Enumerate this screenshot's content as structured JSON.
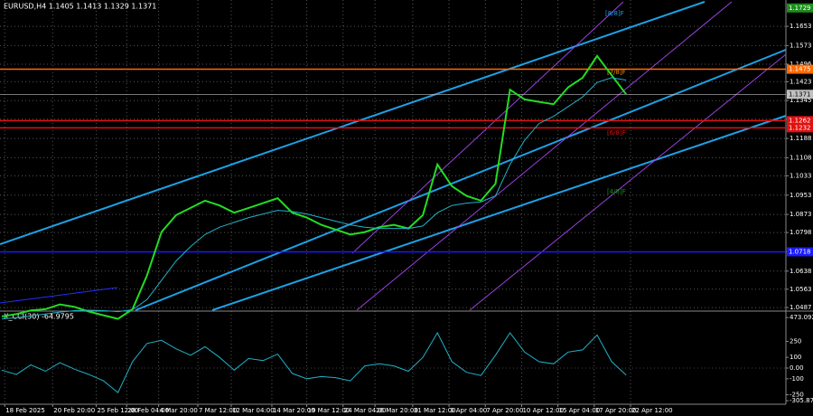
{
  "chart_data": [
    {
      "type": "line",
      "title": "EURUSD,H4  1.1405 1.1413 1.1329 1.1371",
      "ylim": [
        1.0476,
        1.1762
      ],
      "xlim": [
        0,
        54
      ],
      "yticks": [
        1.1653,
        1.1573,
        1.1496,
        1.1423,
        1.1345,
        1.1268,
        1.1188,
        1.1108,
        1.1033,
        1.0953,
        1.0873,
        1.0798,
        1.0718,
        1.0638,
        1.0563,
        1.0487
      ],
      "grid": true,
      "series": [
        {
          "name": "EURUSD",
          "color": "#22dd22",
          "values": [
            1.045,
            1.046,
            1.0475,
            1.048,
            1.05,
            1.049,
            1.047,
            1.0455,
            1.044,
            1.048,
            1.062,
            1.08,
            1.087,
            1.09,
            1.093,
            1.091,
            1.088,
            1.09,
            1.092,
            1.094,
            1.088,
            1.086,
            1.083,
            1.081,
            1.079,
            1.08,
            1.082,
            1.083,
            1.0815,
            1.087,
            1.108,
            1.099,
            1.095,
            1.093,
            1.1,
            1.139,
            1.135,
            1.134,
            1.133,
            1.14,
            1.144,
            1.153,
            1.145,
            1.1371
          ]
        },
        {
          "name": "MA",
          "color": "#20b2c8",
          "values": [
            1.044,
            1.0445,
            1.0452,
            1.046,
            1.0468,
            1.0474,
            1.0476,
            1.0474,
            1.047,
            1.0478,
            1.052,
            1.06,
            1.068,
            1.074,
            1.079,
            1.082,
            1.084,
            1.086,
            1.0875,
            1.089,
            1.0885,
            1.0875,
            1.086,
            1.0845,
            1.083,
            1.082,
            1.0815,
            1.0815,
            1.0815,
            1.0825,
            1.088,
            1.091,
            1.092,
            1.0925,
            1.095,
            1.108,
            1.118,
            1.125,
            1.128,
            1.132,
            1.136,
            1.142,
            1.144,
            1.143
          ]
        }
      ],
      "hlines": [
        {
          "value": 1.1729,
          "color": "#1e8c1e"
        },
        {
          "value": 1.1475,
          "color": "#ff6a00"
        },
        {
          "value": 1.1371,
          "color": "#c0c0c0"
        },
        {
          "value": 1.1262,
          "color": "#e01010"
        },
        {
          "value": 1.1232,
          "color": "#e01010"
        },
        {
          "value": 1.0718,
          "color": "#1a1aff"
        }
      ],
      "annotations": [
        "[8/8]F",
        "[7/8]F",
        "[6/8]F",
        "[4/8]F"
      ]
    },
    {
      "type": "line",
      "title": "X_CCI(30) -64.9795",
      "ylim": [
        -339,
        525
      ],
      "xlim": [
        0,
        54
      ],
      "yticks": [
        473.0924,
        250,
        100,
        {
          "value": 0,
          "label": "0.00"
        },
        -100,
        -250,
        -305.879
      ],
      "xticks": [
        {
          "value": 0.2,
          "label": "18 Feb 2025"
        },
        {
          "value": 3.5,
          "label": "20 Feb 20:00"
        },
        {
          "value": 6.5,
          "label": "25 Feb 12:00"
        },
        {
          "value": 8.6,
          "label": "28 Feb 04:00"
        },
        {
          "value": 10.8,
          "label": "4 Mar 20:00"
        },
        {
          "value": 13.5,
          "label": "7 Mar 12:00"
        },
        {
          "value": 15.8,
          "label": "12 Mar 04:00"
        },
        {
          "value": 18.6,
          "label": "14 Mar 20:00"
        },
        {
          "value": 21,
          "label": "19 Mar 12:00"
        },
        {
          "value": 23.5,
          "label": "24 Mar 04:00"
        },
        {
          "value": 25.7,
          "label": "26 Mar 20:00"
        },
        {
          "value": 28.3,
          "label": "31 Mar 12:00"
        },
        {
          "value": 30.8,
          "label": "3 Apr 04:00"
        },
        {
          "value": 33.3,
          "label": "7 Apr 20:00"
        },
        {
          "value": 35.8,
          "label": "10 Apr 12:00"
        },
        {
          "value": 38.3,
          "label": "15 Apr 04:00"
        },
        {
          "value": 40.8,
          "label": "17 Apr 20:00"
        },
        {
          "value": 43.3,
          "label": "22 Apr 12:00"
        }
      ],
      "series": [
        {
          "name": "X_CCI(30)",
          "color": "#20b2c8",
          "values": [
            -20,
            -60,
            30,
            -30,
            50,
            -10,
            -60,
            -120,
            -230,
            60,
            230,
            260,
            180,
            120,
            200,
            100,
            -20,
            90,
            70,
            130,
            -50,
            -100,
            -80,
            -90,
            -120,
            20,
            40,
            20,
            -30,
            100,
            330,
            60,
            -40,
            -70,
            120,
            330,
            150,
            60,
            40,
            150,
            170,
            310,
            60,
            -65
          ]
        }
      ]
    }
  ]
}
